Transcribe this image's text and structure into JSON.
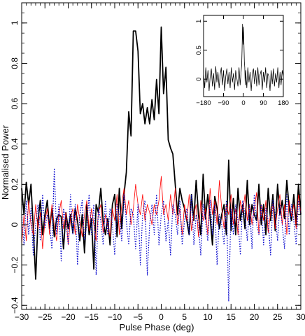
{
  "chart_data": [
    {
      "type": "line",
      "xlabel": "Pulse Phase (deg)",
      "ylabel": "Normalised Power",
      "xlim": [
        -30,
        30
      ],
      "ylim": [
        -0.42,
        1.1
      ],
      "grid": false,
      "x_ticks": [
        -30,
        -25,
        -20,
        -15,
        -10,
        -5,
        0,
        5,
        10,
        15,
        20,
        25,
        30
      ],
      "x_tick_labels": [
        "−30",
        "−25",
        "−20",
        "−15",
        "−10",
        "−5",
        "0",
        "5",
        "10",
        "15",
        "20",
        "25",
        "30"
      ],
      "y_ticks": [
        -0.4,
        -0.2,
        0,
        0.2,
        0.4,
        0.6,
        0.8,
        1
      ],
      "y_tick_labels": [
        "−0.4",
        "−0.2",
        "0",
        "0.2",
        "0.4",
        "0.6",
        "0.8",
        "1"
      ],
      "series_style": [
        {
          "color": "#000000",
          "width": 1.8,
          "dash": ""
        },
        {
          "color": "#ff0000",
          "width": 0.8,
          "dash": ""
        },
        {
          "color": "#0000cc",
          "width": 1.2,
          "dash": "1.5,2"
        }
      ],
      "series": [
        {
          "x": [
            -30,
            -29.5,
            -29,
            -28.5,
            -28,
            -27.5,
            -27,
            -26.5,
            -26,
            -25.5,
            -25,
            -24.5,
            -24,
            -23.5,
            -23,
            -22.5,
            -22,
            -21.5,
            -21,
            -20.5,
            -20,
            -19.5,
            -19,
            -18.5,
            -18,
            -17.5,
            -17,
            -16.5,
            -16,
            -15.5,
            -15,
            -14.5,
            -14,
            -13.5,
            -13,
            -12.5,
            -12,
            -11.5,
            -11,
            -10.5,
            -10,
            -9.5,
            -9,
            -8.5,
            -8,
            -7.5,
            -7,
            -6.5,
            -6,
            -5.5,
            -5,
            -4.5,
            -4,
            -3.5,
            -3,
            -2.5,
            -2,
            -1.5,
            -1,
            -0.5,
            0,
            0.5,
            1,
            1.5,
            2,
            2.5,
            3,
            3.5,
            4,
            4.5,
            5,
            5.5,
            6,
            6.5,
            7,
            7.5,
            8,
            8.5,
            9,
            9.5,
            10,
            10.5,
            11,
            11.5,
            12,
            12.5,
            13,
            13.5,
            14,
            14.5,
            15,
            15.5,
            16,
            16.5,
            17,
            17.5,
            18,
            18.5,
            19,
            19.5,
            20,
            20.5,
            21,
            21.5,
            22,
            22.5,
            23,
            23.5,
            24,
            24.5,
            25,
            25.5,
            26,
            26.5,
            27,
            27.5,
            28,
            28.5,
            29,
            29.5,
            30
          ],
          "y": [
            0.18,
            0.05,
            0.21,
            0.1,
            0.2,
            -0.02,
            -0.27,
            0.02,
            0.12,
            -0.05,
            0.05,
            0.12,
            -0.02,
            0.08,
            -0.06,
            0.03,
            0.05,
            0.04,
            -0.12,
            0.06,
            -0.02,
            0.05,
            -0.04,
            0.08,
            0.02,
            -0.08,
            0.05,
            -0.14,
            0.1,
            -0.05,
            0.03,
            -0.22,
            0.1,
            0.06,
            0.18,
            0.02,
            -0.05,
            0.03,
            -0.1,
            0.1,
            0.15,
            -0.06,
            0.18,
            -0.02,
            0.15,
            0.26,
            0.56,
            0.44,
            0.96,
            0.96,
            0.86,
            0.55,
            0.6,
            0.5,
            0.58,
            0.5,
            0.62,
            0.52,
            0.72,
            0.55,
            0.98,
            0.65,
            0.78,
            0.42,
            0.38,
            0.35,
            0.2,
            0.05,
            0.18,
            0.12,
            0.08,
            0.02,
            -0.05,
            0.15,
            0.02,
            0.22,
            0.05,
            -0.05,
            0.25,
            0.03,
            0.15,
            0.04,
            -0.1,
            0.14,
            0.08,
            -0.02,
            0.05,
            0.1,
            -0.05,
            0.32,
            -0.03,
            0.13,
            -0.05,
            0.18,
            0.02,
            0.1,
            -0.02,
            0.22,
            0.0,
            0.1,
            0.05,
            0.02,
            0.2,
            0.0,
            0.1,
            -0.05,
            0.18,
            0.02,
            0.15,
            -0.03,
            0.2,
            0.05,
            0.12,
            0.03,
            0.22,
            0.08,
            0.02,
            0.15,
            0.0,
            0.2,
            0.05
          ]
        },
        {
          "x": [
            -30,
            -29.5,
            -29,
            -28.5,
            -28,
            -27.5,
            -27,
            -26.5,
            -26,
            -25.5,
            -25,
            -24.5,
            -24,
            -23.5,
            -23,
            -22.5,
            -22,
            -21.5,
            -21,
            -20.5,
            -20,
            -19.5,
            -19,
            -18.5,
            -18,
            -17.5,
            -17,
            -16.5,
            -16,
            -15.5,
            -15,
            -14.5,
            -14,
            -13.5,
            -13,
            -12.5,
            -12,
            -11.5,
            -11,
            -10.5,
            -10,
            -9.5,
            -9,
            -8.5,
            -8,
            -7.5,
            -7,
            -6.5,
            -6,
            -5.5,
            -5,
            -4.5,
            -4,
            -3.5,
            -3,
            -2.5,
            -2,
            -1.5,
            -1,
            -0.5,
            0,
            0.5,
            1,
            1.5,
            2,
            2.5,
            3,
            3.5,
            4,
            4.5,
            5,
            5.5,
            6,
            6.5,
            7,
            7.5,
            8,
            8.5,
            9,
            9.5,
            10,
            10.5,
            11,
            11.5,
            12,
            12.5,
            13,
            13.5,
            14,
            14.5,
            15,
            15.5,
            16,
            16.5,
            17,
            17.5,
            18,
            18.5,
            19,
            19.5,
            20,
            20.5,
            21,
            21.5,
            22,
            22.5,
            23,
            23.5,
            24,
            24.5,
            25,
            25.5,
            26,
            26.5,
            27,
            27.5,
            28,
            28.5,
            29,
            29.5,
            30
          ],
          "y": [
            -0.1,
            0.05,
            -0.08,
            0.12,
            0.0,
            -0.05,
            0.1,
            -0.02,
            0.06,
            -0.12,
            0.02,
            0.08,
            -0.05,
            0.1,
            0.0,
            -0.08,
            0.05,
            0.12,
            -0.02,
            0.06,
            -0.1,
            0.03,
            0.08,
            -0.05,
            0.1,
            0.02,
            -0.06,
            0.05,
            0.12,
            -0.03,
            0.08,
            0.0,
            -0.08,
            0.06,
            0.1,
            -0.04,
            0.05,
            0.0,
            -0.06,
            0.08,
            0.02,
            0.15,
            -0.05,
            0.1,
            0.18,
            0.05,
            0.12,
            0.0,
            0.08,
            0.2,
            0.1,
            0.05,
            0.15,
            0.02,
            0.1,
            0.06,
            0.0,
            0.1,
            0.05,
            0.12,
            0.24,
            0.05,
            0.1,
            0.02,
            0.15,
            0.05,
            0.18,
            0.0,
            0.08,
            -0.05,
            0.1,
            0.02,
            0.15,
            -0.03,
            0.05,
            0.1,
            -0.06,
            0.12,
            0.02,
            0.08,
            -0.05,
            0.18,
            0.05,
            0.12,
            0.0,
            0.22,
            0.08,
            -0.02,
            0.1,
            0.05,
            0.15,
            0.0,
            0.08,
            -0.05,
            0.12,
            0.06,
            0.15,
            0.02,
            0.1,
            0.0,
            0.08,
            0.16,
            -0.05,
            0.1,
            0.02,
            0.12,
            -0.04,
            0.06,
            0.1,
            -0.02,
            0.08,
            0.15,
            0.0,
            0.1,
            -0.05,
            0.12,
            0.04,
            0.1,
            -0.02,
            0.15,
            0.05
          ]
        },
        {
          "x": [
            -30,
            -29.5,
            -29,
            -28.5,
            -28,
            -27.5,
            -27,
            -26.5,
            -26,
            -25.5,
            -25,
            -24.5,
            -24,
            -23.5,
            -23,
            -22.5,
            -22,
            -21.5,
            -21,
            -20.5,
            -20,
            -19.5,
            -19,
            -18.5,
            -18,
            -17.5,
            -17,
            -16.5,
            -16,
            -15.5,
            -15,
            -14.5,
            -14,
            -13.5,
            -13,
            -12.5,
            -12,
            -11.5,
            -11,
            -10.5,
            -10,
            -9.5,
            -9,
            -8.5,
            -8,
            -7.5,
            -7,
            -6.5,
            -6,
            -5.5,
            -5,
            -4.5,
            -4,
            -3.5,
            -3,
            -2.5,
            -2,
            -1.5,
            -1,
            -0.5,
            0,
            0.5,
            1,
            1.5,
            2,
            2.5,
            3,
            3.5,
            4,
            4.5,
            5,
            5.5,
            6,
            6.5,
            7,
            7.5,
            8,
            8.5,
            9,
            9.5,
            10,
            10.5,
            11,
            11.5,
            12,
            12.5,
            13,
            13.5,
            14,
            14.5,
            15,
            15.5,
            16,
            16.5,
            17,
            17.5,
            18,
            18.5,
            19,
            19.5,
            20,
            20.5,
            21,
            21.5,
            22,
            22.5,
            23,
            23.5,
            24,
            24.5,
            25,
            25.5,
            26,
            26.5,
            27,
            27.5,
            28,
            28.5,
            29,
            29.5,
            30
          ],
          "y": [
            0.05,
            -0.1,
            0.12,
            -0.05,
            0.08,
            -0.15,
            0.0,
            0.1,
            -0.08,
            0.15,
            -0.02,
            0.05,
            0.0,
            -0.12,
            0.28,
            -0.05,
            0.1,
            -0.18,
            0.08,
            0.02,
            -0.1,
            0.15,
            -0.05,
            0.1,
            -0.2,
            0.05,
            0.12,
            -0.08,
            0.0,
            0.15,
            -0.05,
            0.1,
            -0.25,
            0.08,
            0.02,
            -0.1,
            0.12,
            -0.05,
            0.08,
            0.0,
            -0.15,
            0.1,
            0.05,
            -0.08,
            0.15,
            0.02,
            -0.1,
            0.08,
            0.05,
            -0.12,
            0.1,
            -0.2,
            0.05,
            0.12,
            -0.25,
            0.0,
            0.1,
            -0.05,
            0.15,
            -0.1,
            0.05,
            0.12,
            -0.08,
            0.02,
            -0.15,
            0.1,
            0.05,
            -0.05,
            0.12,
            -0.1,
            0.02,
            0.08,
            -0.05,
            0.15,
            -0.1,
            0.05,
            0.0,
            -0.15,
            0.1,
            0.02,
            -0.08,
            0.12,
            -0.05,
            0.1,
            -0.2,
            0.05,
            0.0,
            -0.1,
            0.12,
            -0.38,
            0.08,
            -0.05,
            0.1,
            0.02,
            -0.15,
            0.12,
            0.05,
            -0.08,
            0.1,
            -0.12,
            0.15,
            0.0,
            -0.05,
            0.1,
            -0.1,
            0.08,
            0.02,
            -0.15,
            0.12,
            0.05,
            -0.08,
            0.1,
            0.0,
            -0.12,
            0.15,
            -0.05,
            0.1,
            0.02,
            -0.1,
            0.12,
            0.05
          ]
        }
      ]
    },
    {
      "type": "line",
      "xlim": [
        -180,
        180
      ],
      "ylim": [
        -0.3,
        1.1
      ],
      "x_ticks": [
        -180,
        -90,
        0,
        90,
        180
      ],
      "x_tick_labels": [
        "−180",
        "−90",
        "0",
        "90",
        "180"
      ],
      "y_ticks": [
        0,
        0.5,
        1
      ],
      "y_tick_labels": [
        "0",
        "0.5",
        "1"
      ],
      "series_style": [
        {
          "color": "#000000",
          "width": 0.8,
          "dash": ""
        }
      ],
      "series": [
        {
          "x": [
            -180,
            -175,
            -170,
            -165,
            -160,
            -155,
            -150,
            -145,
            -140,
            -135,
            -130,
            -125,
            -120,
            -115,
            -110,
            -105,
            -100,
            -95,
            -90,
            -85,
            -80,
            -75,
            -70,
            -65,
            -60,
            -55,
            -50,
            -45,
            -40,
            -35,
            -30,
            -25,
            -20,
            -15,
            -10,
            -8,
            -6,
            -4,
            -2,
            0,
            2,
            4,
            6,
            8,
            10,
            15,
            20,
            25,
            30,
            35,
            40,
            45,
            50,
            55,
            60,
            65,
            70,
            75,
            80,
            85,
            90,
            95,
            100,
            105,
            110,
            115,
            120,
            125,
            130,
            135,
            140,
            145,
            150,
            155,
            160,
            165,
            170,
            175,
            180
          ],
          "y": [
            0.1,
            -0.15,
            0.2,
            -0.05,
            0.15,
            -0.2,
            0.05,
            0.18,
            -0.12,
            0.1,
            -0.18,
            0.22,
            -0.05,
            0.12,
            -0.15,
            0.08,
            0.2,
            -0.1,
            0.15,
            -0.2,
            0.05,
            0.18,
            -0.08,
            0.12,
            -0.15,
            0.2,
            -0.05,
            0.1,
            -0.18,
            0.15,
            0.02,
            -0.12,
            0.2,
            -0.1,
            0.15,
            0.25,
            0.55,
            0.95,
            0.6,
            0.9,
            0.65,
            0.3,
            0.2,
            -0.1,
            0.15,
            -0.15,
            0.2,
            -0.05,
            0.12,
            -0.2,
            0.1,
            0.18,
            -0.08,
            0.15,
            -0.12,
            0.2,
            -0.1,
            0.08,
            0.15,
            -0.18,
            0.12,
            -0.05,
            0.2,
            -0.15,
            0.1,
            0.05,
            -0.2,
            0.15,
            -0.08,
            0.18,
            -0.12,
            0.1,
            -0.05,
            0.2,
            -0.15,
            0.12,
            -0.1,
            0.15,
            0.05
          ]
        }
      ]
    }
  ]
}
